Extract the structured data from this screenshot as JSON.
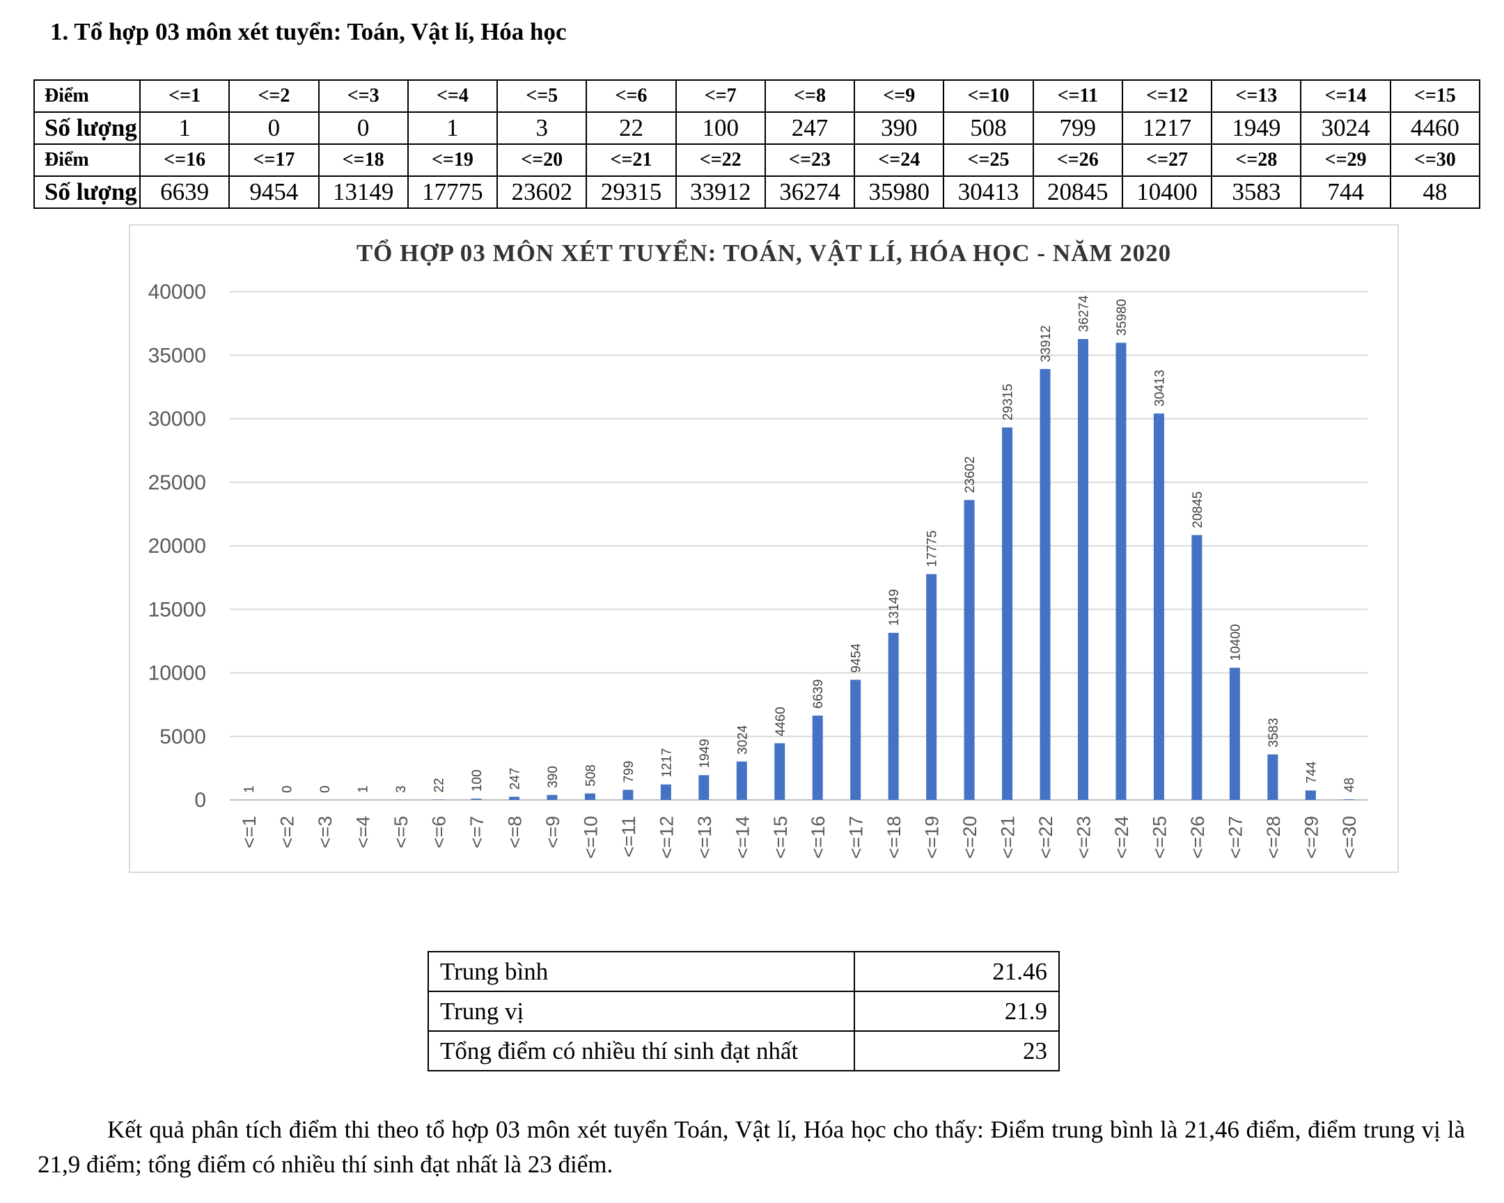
{
  "heading": "1. Tổ hợp 03 môn xét tuyển: Toán, Vật lí, Hóa học",
  "table": {
    "row_label_score": "Điểm",
    "row_label_count": "Số lượng",
    "scores_1": [
      "<=1",
      "<=2",
      "<=3",
      "<=4",
      "<=5",
      "<=6",
      "<=7",
      "<=8",
      "<=9",
      "<=10",
      "<=11",
      "<=12",
      "<=13",
      "<=14",
      "<=15"
    ],
    "counts_1": [
      "1",
      "0",
      "0",
      "1",
      "3",
      "22",
      "100",
      "247",
      "390",
      "508",
      "799",
      "1217",
      "1949",
      "3024",
      "4460"
    ],
    "scores_2": [
      "<=16",
      "<=17",
      "<=18",
      "<=19",
      "<=20",
      "<=21",
      "<=22",
      "<=23",
      "<=24",
      "<=25",
      "<=26",
      "<=27",
      "<=28",
      "<=29",
      "<=30"
    ],
    "counts_2": [
      "6639",
      "9454",
      "13149",
      "17775",
      "23602",
      "29315",
      "33912",
      "36274",
      "35980",
      "30413",
      "20845",
      "10400",
      "3583",
      "744",
      "48"
    ]
  },
  "chart_data": {
    "type": "bar",
    "title": "TỔ HỢP 03 MÔN XÉT TUYỂN: TOÁN, VẬT LÍ, HÓA HỌC - NĂM 2020",
    "categories": [
      "<=1",
      "<=2",
      "<=3",
      "<=4",
      "<=5",
      "<=6",
      "<=7",
      "<=8",
      "<=9",
      "<=10",
      "<=11",
      "<=12",
      "<=13",
      "<=14",
      "<=15",
      "<=16",
      "<=17",
      "<=18",
      "<=19",
      "<=20",
      "<=21",
      "<=22",
      "<=23",
      "<=24",
      "<=25",
      "<=26",
      "<=27",
      "<=28",
      "<=29",
      "<=30"
    ],
    "values": [
      1,
      0,
      0,
      1,
      3,
      22,
      100,
      247,
      390,
      508,
      799,
      1217,
      1949,
      3024,
      4460,
      6639,
      9454,
      13149,
      17775,
      23602,
      29315,
      33912,
      36274,
      35980,
      30413,
      20845,
      10400,
      3583,
      744,
      48
    ],
    "yticks": [
      "40000",
      "35000",
      "30000",
      "25000",
      "20000",
      "15000",
      "10000",
      "5000",
      "0"
    ],
    "ylim": [
      0,
      40000
    ],
    "xlabel": "",
    "ylabel": "",
    "bar_color": "#4472C4",
    "grid": true
  },
  "stats": [
    {
      "label": "Trung bình",
      "value": "21.46"
    },
    {
      "label": "Trung vị",
      "value": "21.9"
    },
    {
      "label": "Tổng điểm có nhiều thí sinh đạt nhất",
      "value": "23"
    }
  ],
  "paragraph": "Kết quả phân tích điểm thi theo tổ hợp 03 môn xét tuyển Toán, Vật lí, Hóa học cho thấy: Điểm trung bình là 21,46 điểm, điểm trung vị là 21,9 điểm; tổng điểm có nhiều thí sinh đạt nhất là 23 điểm."
}
